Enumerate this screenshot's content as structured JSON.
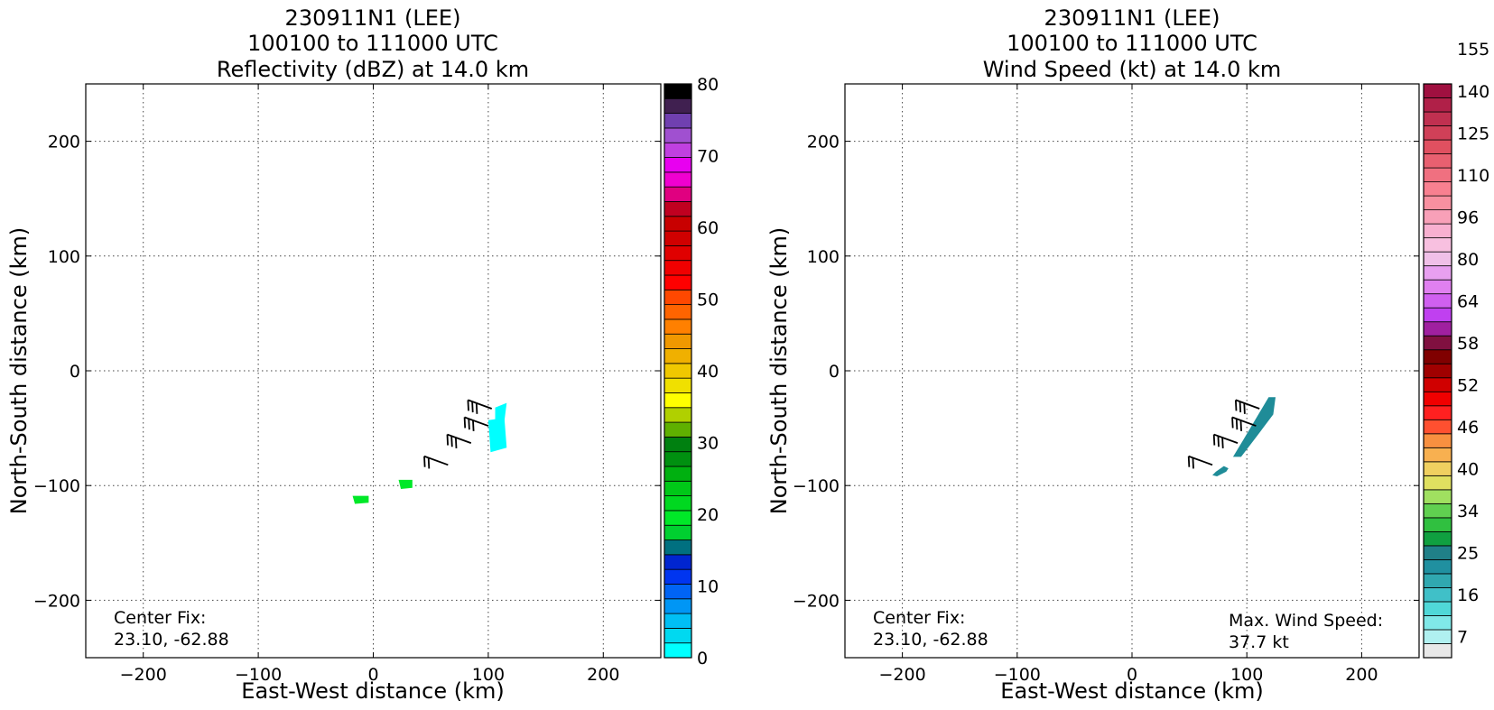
{
  "chart_data": [
    {
      "type": "heatmap",
      "title_lines": [
        "230911N1 (LEE)",
        "100100 to 111000 UTC",
        "Reflectivity (dBZ) at 14.0 km"
      ],
      "xlabel": "East-West distance (km)",
      "ylabel": "North-South distance (km)",
      "xlim": [
        -250,
        250
      ],
      "ylim": [
        -250,
        250
      ],
      "xticks": [
        -200,
        -100,
        0,
        100,
        200
      ],
      "yticks": [
        -200,
        -100,
        0,
        100,
        200
      ],
      "grid": true,
      "annotation_lines": [
        "Center Fix:",
        "23.10, -62.88"
      ],
      "colorbar": {
        "min": 0,
        "max": 80,
        "tick_values": [
          0,
          10,
          20,
          30,
          40,
          50,
          60,
          70,
          80
        ],
        "colors": [
          "#00ffff",
          "#00d9f0",
          "#00bff5",
          "#0096f5",
          "#0064f5",
          "#0035f0",
          "#0025d0",
          "#007080",
          "#00d030",
          "#00e828",
          "#00d820",
          "#00c818",
          "#00b010",
          "#009010",
          "#008010",
          "#5fb000",
          "#b0d000",
          "#ffff00",
          "#f0e000",
          "#f0c800",
          "#f0b000",
          "#f09800",
          "#ff8000",
          "#ff6400",
          "#ff4800",
          "#ff0000",
          "#f00000",
          "#e00000",
          "#d00000",
          "#c80000",
          "#c00020",
          "#e00080",
          "#f000d0",
          "#e800f0",
          "#c040e0",
          "#a050d0",
          "#7040b0",
          "#402050",
          "#000000"
        ]
      },
      "reflectivity_blobs_dbz": [
        {
          "x": 110,
          "y": -38,
          "value": 2
        },
        {
          "x": 108,
          "y": -55,
          "value": 2
        },
        {
          "x": 28,
          "y": -98,
          "value": 20
        },
        {
          "x": -10,
          "y": -112,
          "value": 20
        }
      ],
      "wind_barbs_kt": [
        {
          "x": 103,
          "y": -33,
          "speed": 30
        },
        {
          "x": 100,
          "y": -48,
          "speed": 30
        },
        {
          "x": 85,
          "y": -63,
          "speed": 30
        },
        {
          "x": 65,
          "y": -82,
          "speed": 20
        }
      ]
    },
    {
      "type": "heatmap",
      "title_lines": [
        "230911N1 (LEE)",
        "100100 to 111000 UTC",
        "Wind Speed (kt) at 14.0 km"
      ],
      "xlabel": "East-West distance (km)",
      "ylabel": "North-South distance (km)",
      "xlim": [
        -250,
        250
      ],
      "ylim": [
        -250,
        250
      ],
      "xticks": [
        -200,
        -100,
        0,
        100,
        200
      ],
      "yticks": [
        -200,
        -100,
        0,
        100,
        200
      ],
      "grid": true,
      "annotation_lines": [
        "Center Fix:",
        "23.10, -62.88"
      ],
      "max_wind_lines": [
        "Max. Wind Speed:",
        "37.7 kt"
      ],
      "colorbar": {
        "tick_labels": [
          "7",
          "16",
          "25",
          "34",
          "40",
          "46",
          "52",
          "58",
          "64",
          "80",
          "96",
          "110",
          "125",
          "140",
          "155"
        ],
        "colors": [
          "#e8e8e8",
          "#b0f0f0",
          "#80e8e8",
          "#50d8d8",
          "#40c0c8",
          "#30a8b0",
          "#2090a0",
          "#208088",
          "#10a040",
          "#30c040",
          "#60d050",
          "#a0e060",
          "#e0e060",
          "#f0d060",
          "#f8b050",
          "#f89040",
          "#ff5030",
          "#ff2020",
          "#f00000",
          "#d00000",
          "#a00000",
          "#800000",
          "#801040",
          "#a020a0",
          "#c040f0",
          "#d060f0",
          "#e080f0",
          "#e8a0f0",
          "#f0c0e8",
          "#f8c0e0",
          "#f8b0d0",
          "#f8a0b8",
          "#f890a0",
          "#f88090",
          "#f07080",
          "#e86070",
          "#e05060",
          "#d04058",
          "#c03050",
          "#b02048",
          "#a01040"
        ]
      },
      "wind_blobs": [
        {
          "points": [
            [
              125,
              -23
            ],
            [
              119,
              -23
            ],
            [
              97,
              -60
            ],
            [
              88,
              -75
            ],
            [
              95,
              -75
            ],
            [
              108,
              -58
            ],
            [
              123,
              -38
            ]
          ],
          "value": 30
        },
        {
          "points": [
            [
              84,
              -85
            ],
            [
              80,
              -83
            ],
            [
              73,
              -88
            ],
            [
              70,
              -91
            ],
            [
              74,
              -92
            ],
            [
              82,
              -88
            ]
          ],
          "value": 32
        }
      ],
      "wind_barbs_kt": [
        {
          "x": 111,
          "y": -33,
          "speed": 30
        },
        {
          "x": 108,
          "y": -48,
          "speed": 30
        },
        {
          "x": 92,
          "y": -63,
          "speed": 30
        },
        {
          "x": 70,
          "y": -82,
          "speed": 20
        }
      ]
    }
  ]
}
